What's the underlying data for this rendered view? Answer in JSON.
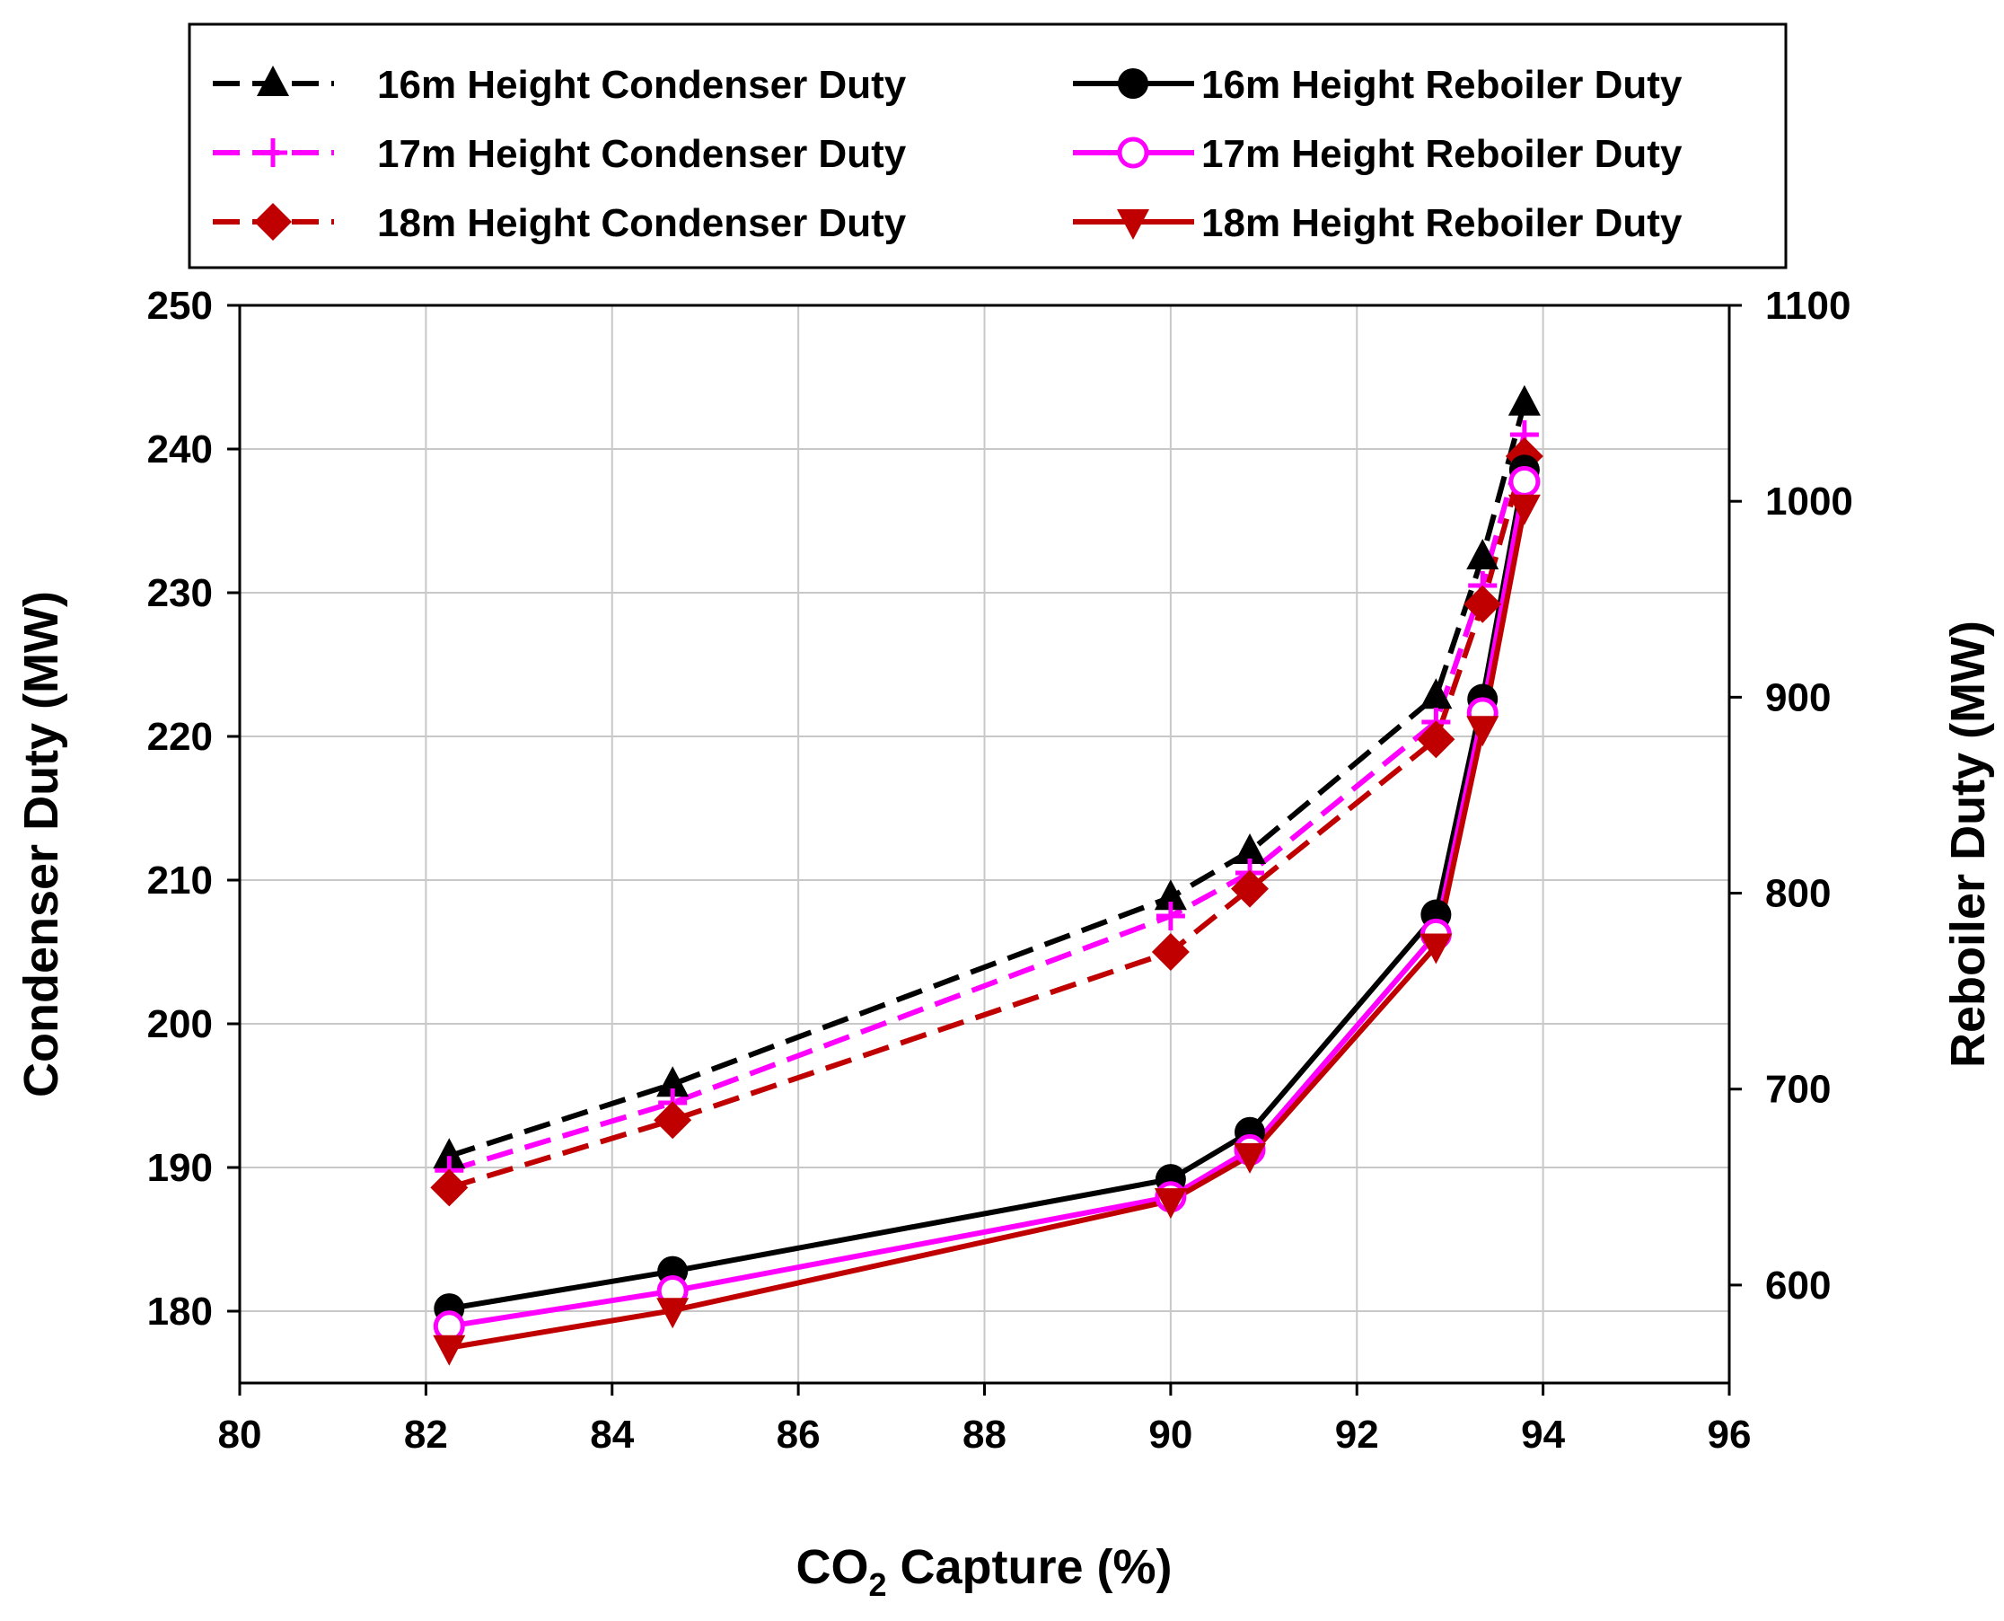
{
  "chart_data": {
    "type": "line",
    "title": "",
    "x_axis": {
      "label_main": "CO",
      "label_sub": "2",
      "label_rest": " Capture (%)",
      "range": [
        80,
        96
      ],
      "ticks": [
        80,
        82,
        84,
        86,
        88,
        90,
        92,
        94,
        96
      ],
      "grid": true
    },
    "y_left": {
      "label": "Condenser Duty (MW)",
      "range": [
        175,
        250
      ],
      "ticks": [
        180,
        190,
        200,
        210,
        220,
        230,
        240,
        250
      ]
    },
    "y_right": {
      "label": "Reboiler Duty (MW)",
      "range": [
        550,
        1100
      ],
      "ticks": [
        600,
        700,
        800,
        900,
        1000,
        1100
      ]
    },
    "x": [
      82.25,
      84.65,
      90.0,
      90.85,
      92.85,
      93.35,
      93.8
    ],
    "series": [
      {
        "name": "16m Height Condenser Duty",
        "axis": "left",
        "color": "#000000",
        "dash": "dashed",
        "marker": "triangle-up",
        "values": [
          190.8,
          195.8,
          208.8,
          212.0,
          222.8,
          232.5,
          243.2
        ]
      },
      {
        "name": "17m Height Condenser Duty",
        "axis": "left",
        "color": "#ff00ff",
        "dash": "dashed",
        "marker": "plus",
        "values": [
          189.8,
          194.5,
          207.5,
          210.5,
          221.0,
          230.5,
          241.0
        ]
      },
      {
        "name": "18m Height Condenser Duty",
        "axis": "left",
        "color": "#c00000",
        "dash": "dashed",
        "marker": "diamond",
        "values": [
          188.6,
          193.3,
          205.0,
          209.4,
          219.8,
          229.2,
          239.5
        ]
      },
      {
        "name": "16m Height Reboiler Duty",
        "axis": "right",
        "color": "#000000",
        "dash": "solid",
        "marker": "circle-filled",
        "values": [
          588,
          607,
          654,
          678,
          789,
          899,
          1016
        ]
      },
      {
        "name": "17m Height Reboiler Duty",
        "axis": "right",
        "color": "#ff00ff",
        "dash": "solid",
        "marker": "circle-open",
        "values": [
          579,
          597,
          645,
          669,
          779,
          892,
          1010
        ]
      },
      {
        "name": "18m Height Reboiler Duty",
        "axis": "right",
        "color": "#c00000",
        "dash": "solid",
        "marker": "triangle-down",
        "values": [
          568,
          587,
          643,
          666,
          773,
          884,
          997
        ]
      }
    ],
    "legend_position": "top"
  }
}
